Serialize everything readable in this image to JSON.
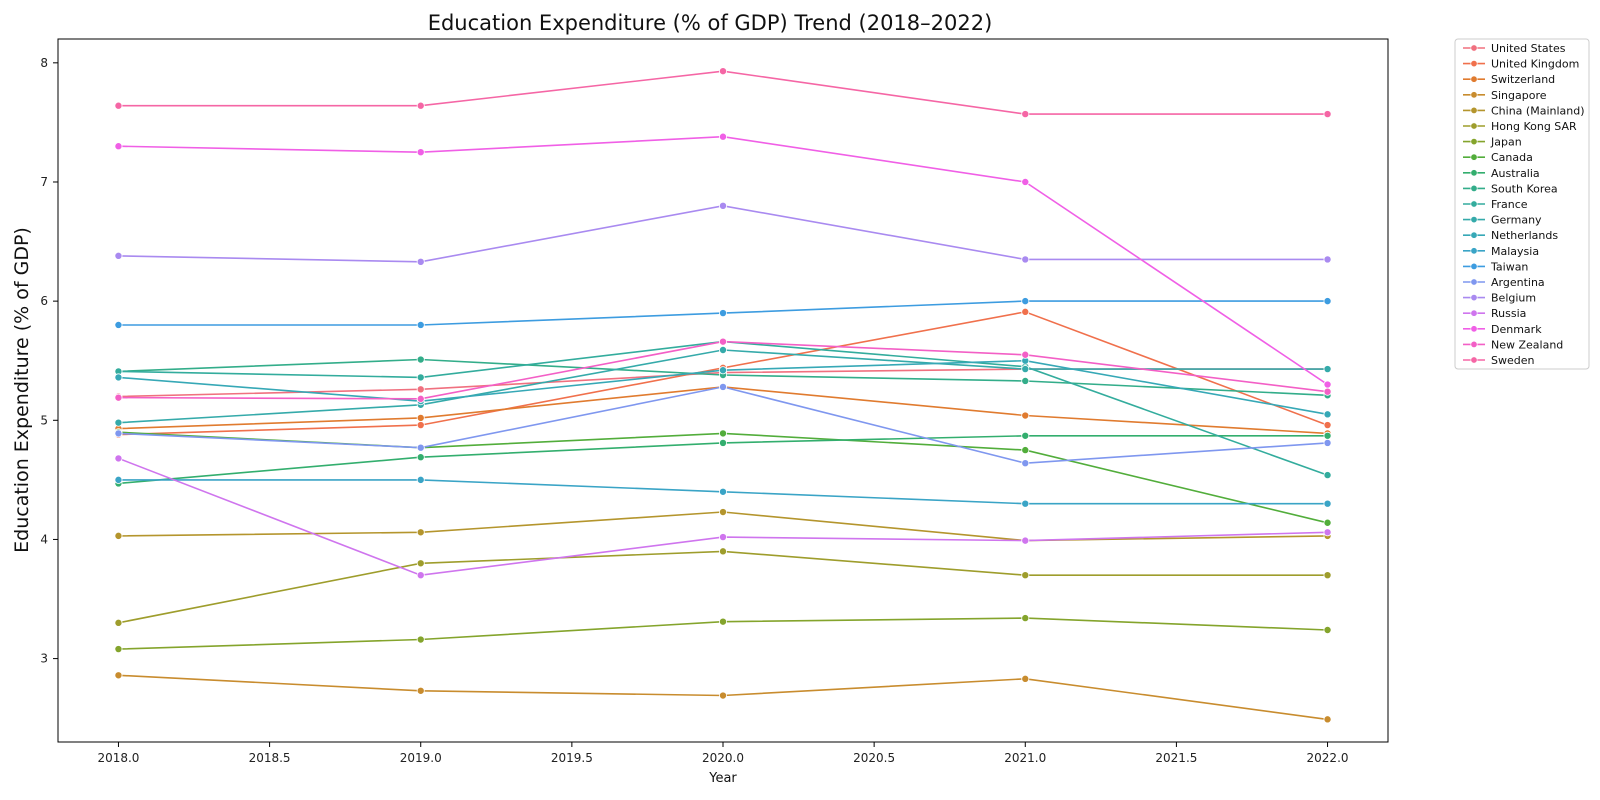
{
  "chart_data": {
    "type": "line",
    "title": "Education Expenditure (% of GDP) Trend (2018–2022)",
    "xlabel": "Year",
    "ylabel": "Education Expenditure (% of GDP)",
    "x": [
      2018,
      2019,
      2020,
      2021,
      2022
    ],
    "xlim": [
      2017.8,
      2022.2
    ],
    "ylim": [
      2.3,
      8.2
    ],
    "xticks": [
      2018.0,
      2018.5,
      2019.0,
      2019.5,
      2020.0,
      2020.5,
      2021.0,
      2021.5,
      2022.0
    ],
    "xtick_labels": [
      "2018.0",
      "2018.5",
      "2019.0",
      "2019.5",
      "2020.0",
      "2020.5",
      "2021.0",
      "2021.5",
      "2022.0"
    ],
    "yticks": [
      3,
      4,
      5,
      6,
      7,
      8
    ],
    "ytick_labels": [
      "3",
      "4",
      "5",
      "6",
      "7",
      "8"
    ],
    "grid": false,
    "legend_position": "outside-right",
    "series": [
      {
        "name": "United States",
        "color": "#f0707f",
        "values": [
          5.2,
          5.26,
          5.4,
          5.43,
          5.43
        ]
      },
      {
        "name": "United Kingdom",
        "color": "#f0704c",
        "values": [
          4.88,
          4.96,
          5.44,
          5.91,
          4.96
        ]
      },
      {
        "name": "Switzerland",
        "color": "#e07b2f",
        "values": [
          4.93,
          5.02,
          5.28,
          5.04,
          4.89
        ]
      },
      {
        "name": "Singapore",
        "color": "#c88c2e",
        "values": [
          2.86,
          2.73,
          2.69,
          2.83,
          2.49
        ]
      },
      {
        "name": "China (Mainland)",
        "color": "#b4952d",
        "values": [
          4.03,
          4.06,
          4.23,
          3.99,
          4.03
        ]
      },
      {
        "name": "Hong Kong SAR",
        "color": "#9e9d2c",
        "values": [
          3.3,
          3.8,
          3.9,
          3.7,
          3.7
        ]
      },
      {
        "name": "Japan",
        "color": "#84a42c",
        "values": [
          3.08,
          3.16,
          3.31,
          3.34,
          3.24
        ]
      },
      {
        "name": "Canada",
        "color": "#52ad3b",
        "values": [
          4.9,
          4.77,
          4.89,
          4.75,
          4.14
        ]
      },
      {
        "name": "Australia",
        "color": "#33ae6e",
        "values": [
          4.47,
          4.69,
          4.81,
          4.87,
          4.87
        ]
      },
      {
        "name": "South Korea",
        "color": "#33ad8a",
        "values": [
          5.41,
          5.51,
          5.38,
          5.33,
          5.21
        ]
      },
      {
        "name": "France",
        "color": "#33ac9d",
        "values": [
          5.41,
          5.36,
          5.66,
          5.45,
          4.54
        ]
      },
      {
        "name": "Germany",
        "color": "#35aaaa",
        "values": [
          4.98,
          5.13,
          5.59,
          5.43,
          5.43
        ]
      },
      {
        "name": "Netherlands",
        "color": "#36a8b6",
        "values": [
          5.36,
          5.16,
          5.42,
          5.5,
          5.05
        ]
      },
      {
        "name": "Malaysia",
        "color": "#3aa4c6",
        "values": [
          4.5,
          4.5,
          4.4,
          4.3,
          4.3
        ]
      },
      {
        "name": "Taiwan",
        "color": "#3d9ce0",
        "values": [
          5.8,
          5.8,
          5.9,
          6.0,
          6.0
        ]
      },
      {
        "name": "Argentina",
        "color": "#7f97ef",
        "values": [
          4.89,
          4.77,
          5.28,
          4.64,
          4.81
        ]
      },
      {
        "name": "Belgium",
        "color": "#a98af0",
        "values": [
          6.38,
          6.33,
          6.8,
          6.35,
          6.35
        ]
      },
      {
        "name": "Russia",
        "color": "#cf75ee",
        "values": [
          4.68,
          3.7,
          4.02,
          3.99,
          4.06
        ]
      },
      {
        "name": "Denmark",
        "color": "#f05fe6",
        "values": [
          7.3,
          7.25,
          7.38,
          7.0,
          5.3
        ]
      },
      {
        "name": "New Zealand",
        "color": "#f35fc6",
        "values": [
          5.19,
          5.18,
          5.66,
          5.55,
          5.24
        ]
      },
      {
        "name": "Sweden",
        "color": "#f566a5",
        "values": [
          7.64,
          7.64,
          7.93,
          7.57,
          7.57
        ]
      }
    ]
  }
}
